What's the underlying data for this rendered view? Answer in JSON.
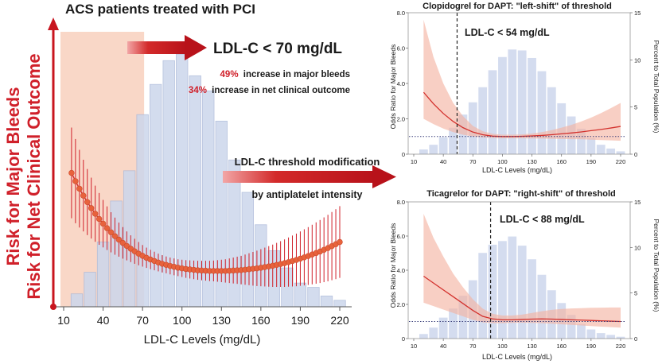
{
  "colors": {
    "accent_red": "#d0202a",
    "arrow_red": "#c8151f",
    "bar_blue": "#ccd6ec",
    "bar_blue_stroke": "#aab8d8",
    "shade_orange": "#f7cdb9",
    "ci_red": "#f3b2a0",
    "curve_red": "#d3312d",
    "dot_orange": "#e8623c",
    "text_dark": "#1a1a1a",
    "axis_gray": "#555555"
  },
  "main": {
    "title": "ACS patients treated with PCI",
    "y_axis_label_1": "Risk for Major Bleeds",
    "y_axis_label_2": "Risk for Net Clinical Outcome",
    "threshold_label": "LDL-C < 70 mg/dL",
    "stat1_pct": "49%",
    "stat1_text": "increase in major bleeds",
    "stat2_pct": "34%",
    "stat2_text": "increase in net clinical outcome",
    "middle_arrow_line1": "LDL-C threshold modification",
    "middle_arrow_line2": "by antiplatelet intensity"
  },
  "chart_data": [
    {
      "id": "main",
      "type": "bar",
      "title": "ACS patients treated with PCI",
      "xlabel": "LDL-C Levels (mg/dL)",
      "ylabel": "Risk for Major Bleeds / Risk for Net Clinical Outcome",
      "x_ticks": [
        10,
        40,
        70,
        100,
        130,
        160,
        190,
        220
      ],
      "xlim": [
        10,
        225
      ],
      "ylim": [
        0,
        12
      ],
      "bar_width": 10,
      "bar_centers": [
        20,
        30,
        40,
        50,
        60,
        70,
        80,
        90,
        100,
        110,
        120,
        130,
        140,
        150,
        160,
        170,
        180,
        190,
        200,
        210,
        220
      ],
      "bar_heights": [
        0.6,
        1.6,
        3.0,
        4.9,
        6.3,
        8.9,
        10.3,
        11.4,
        11.7,
        10.7,
        10.0,
        8.6,
        6.8,
        5.3,
        3.8,
        2.6,
        1.8,
        1.1,
        0.9,
        0.5,
        0.3
      ],
      "shaded_range": [
        10,
        70
      ],
      "risk_points_x": [
        16,
        19,
        22,
        25,
        28,
        31,
        34,
        37,
        40,
        43,
        46,
        49,
        52,
        55,
        58,
        61,
        64,
        67,
        70,
        73,
        76,
        79,
        82,
        85,
        88,
        91,
        94,
        97,
        100,
        103,
        106,
        109,
        112,
        115,
        118,
        121,
        124,
        127,
        130,
        133,
        136,
        139,
        142,
        145,
        148,
        151,
        154,
        157,
        160,
        163,
        166,
        169,
        172,
        175,
        178,
        181,
        184,
        187,
        190,
        193,
        196,
        199,
        202,
        205,
        208,
        211,
        214,
        217,
        220
      ],
      "risk_points_y": [
        6.2,
        5.82,
        5.47,
        5.15,
        4.85,
        4.57,
        4.31,
        4.07,
        3.85,
        3.64,
        3.45,
        3.27,
        3.11,
        2.96,
        2.82,
        2.69,
        2.57,
        2.46,
        2.36,
        2.27,
        2.19,
        2.12,
        2.05,
        1.99,
        1.94,
        1.89,
        1.85,
        1.81,
        1.78,
        1.75,
        1.73,
        1.71,
        1.69,
        1.68,
        1.67,
        1.66,
        1.66,
        1.66,
        1.66,
        1.66,
        1.67,
        1.68,
        1.69,
        1.7,
        1.72,
        1.74,
        1.76,
        1.78,
        1.81,
        1.84,
        1.87,
        1.9,
        1.94,
        1.98,
        2.02,
        2.07,
        2.12,
        2.17,
        2.23,
        2.29,
        2.35,
        2.42,
        2.49,
        2.56,
        2.64,
        2.72,
        2.81,
        2.9,
        3.0
      ],
      "risk_err_halfwidth": [
        2.1,
        1.95,
        1.8,
        1.66,
        1.53,
        1.41,
        1.3,
        1.2,
        1.1,
        1.01,
        0.93,
        0.86,
        0.79,
        0.73,
        0.67,
        0.62,
        0.58,
        0.54,
        0.5,
        0.47,
        0.45,
        0.43,
        0.41,
        0.4,
        0.39,
        0.39,
        0.39,
        0.39,
        0.4,
        0.41,
        0.42,
        0.43,
        0.44,
        0.45,
        0.46,
        0.47,
        0.48,
        0.5,
        0.52,
        0.54,
        0.57,
        0.6,
        0.63,
        0.66,
        0.7,
        0.74,
        0.78,
        0.82,
        0.86,
        0.9,
        0.94,
        0.98,
        1.02,
        1.06,
        1.1,
        1.14,
        1.18,
        1.22,
        1.26,
        1.3,
        1.34,
        1.38,
        1.42,
        1.46,
        1.5,
        1.54,
        1.58,
        1.62,
        1.66
      ]
    },
    {
      "id": "clopidogrel",
      "type": "line",
      "title": "Clopidogrel for DAPT: \"left-shift\" of threshold",
      "threshold_label": "LDL-C < 54 mg/dL",
      "threshold_x": 54,
      "xlabel": "LDL-C Levels (mg/dL)",
      "ylabel_left": "Odds Ratio for Major Bleeds",
      "ylabel_right": "Percent to Total Population (%)",
      "x_ticks": [
        10,
        40,
        70,
        100,
        130,
        160,
        190,
        220
      ],
      "y_left_ticks": [
        "0",
        "2.0",
        "4.0",
        "6.0",
        "8.0"
      ],
      "y_left_values": [
        0,
        2,
        4,
        6,
        8
      ],
      "y_right_ticks": [
        "0",
        "5",
        "10",
        "15"
      ],
      "y_right_values": [
        0,
        5,
        10,
        15
      ],
      "xlim": [
        10,
        225
      ],
      "ylim_left": [
        0,
        8
      ],
      "ylim_right": [
        0,
        15
      ],
      "reference_or": 1.0,
      "bar_centers": [
        20,
        30,
        40,
        50,
        60,
        70,
        80,
        90,
        100,
        110,
        120,
        130,
        140,
        150,
        160,
        170,
        180,
        190,
        200,
        210,
        220
      ],
      "bar_percent": [
        0.5,
        1.0,
        1.8,
        2.8,
        4.2,
        5.5,
        7.1,
        8.9,
        10.3,
        11.1,
        11.0,
        10.2,
        8.8,
        7.1,
        5.4,
        4.0,
        2.7,
        1.7,
        1.0,
        0.6,
        0.3
      ],
      "curve_x": [
        20,
        30,
        40,
        50,
        60,
        70,
        80,
        90,
        100,
        110,
        120,
        130,
        140,
        150,
        160,
        170,
        180,
        190,
        200,
        210,
        220
      ],
      "curve_or": [
        3.5,
        2.85,
        2.3,
        1.85,
        1.5,
        1.25,
        1.1,
        1.02,
        1.0,
        1.0,
        1.01,
        1.03,
        1.06,
        1.1,
        1.15,
        1.2,
        1.26,
        1.33,
        1.4,
        1.48,
        1.57
      ],
      "ci_lower": [
        2.0,
        1.7,
        1.45,
        1.25,
        1.1,
        1.0,
        0.95,
        0.92,
        0.9,
        0.9,
        0.9,
        0.89,
        0.88,
        0.87,
        0.86,
        0.85,
        0.84,
        0.82,
        0.8,
        0.78,
        0.76
      ],
      "ci_upper": [
        7.6,
        5.5,
        4.0,
        2.9,
        2.15,
        1.6,
        1.3,
        1.15,
        1.1,
        1.1,
        1.12,
        1.17,
        1.25,
        1.36,
        1.5,
        1.66,
        1.85,
        2.07,
        2.32,
        2.6,
        2.9
      ]
    },
    {
      "id": "ticagrelor",
      "type": "line",
      "title": "Ticagrelor for DAPT:  \"right-shift\" of threshold",
      "threshold_label": "LDL-C < 88 mg/dL",
      "threshold_x": 88,
      "xlabel": "LDL-C Levels (mg/dL)",
      "ylabel_left": "Odds Ratio for Major Bleeds",
      "ylabel_right": "Percent to Total Population (%)",
      "x_ticks": [
        10,
        40,
        70,
        100,
        130,
        160,
        190,
        220
      ],
      "y_left_ticks": [
        "0",
        "2.0",
        "4.0",
        "6.0",
        "8.0"
      ],
      "y_left_values": [
        0,
        2,
        4,
        6,
        8
      ],
      "y_right_ticks": [
        "0",
        "5",
        "10",
        "15"
      ],
      "y_right_values": [
        0,
        5,
        10,
        15
      ],
      "xlim": [
        10,
        225
      ],
      "ylim_left": [
        0,
        8
      ],
      "ylim_right": [
        0,
        15
      ],
      "reference_or": 1.0,
      "bar_centers": [
        20,
        30,
        40,
        50,
        60,
        70,
        80,
        90,
        100,
        110,
        120,
        130,
        140,
        150,
        160,
        170,
        180,
        190,
        200,
        210,
        220
      ],
      "bar_percent": [
        0.5,
        1.2,
        2.3,
        3.3,
        4.7,
        6.4,
        9.4,
        10.3,
        10.7,
        11.2,
        10.2,
        8.7,
        7.0,
        5.3,
        3.9,
        2.6,
        1.6,
        1.0,
        0.6,
        0.4,
        0.2
      ],
      "curve_x": [
        20,
        30,
        40,
        50,
        60,
        70,
        80,
        90,
        100,
        110,
        120,
        130,
        140,
        150,
        160,
        170,
        180,
        190,
        200,
        210,
        220
      ],
      "curve_or": [
        3.65,
        3.25,
        2.85,
        2.45,
        2.05,
        1.65,
        1.3,
        1.15,
        1.1,
        1.1,
        1.12,
        1.14,
        1.15,
        1.14,
        1.12,
        1.1,
        1.08,
        1.06,
        1.04,
        1.02,
        1.0
      ],
      "ci_lower": [
        2.1,
        1.9,
        1.7,
        1.5,
        1.3,
        1.1,
        0.95,
        0.9,
        0.9,
        0.92,
        0.93,
        0.92,
        0.9,
        0.87,
        0.84,
        0.8,
        0.77,
        0.73,
        0.7,
        0.67,
        0.64
      ],
      "ci_upper": [
        7.3,
        5.9,
        4.8,
        3.8,
        3.0,
        2.3,
        1.75,
        1.45,
        1.35,
        1.35,
        1.4,
        1.5,
        1.6,
        1.68,
        1.73,
        1.76,
        1.78,
        1.8,
        1.81,
        1.82,
        1.82
      ]
    }
  ]
}
